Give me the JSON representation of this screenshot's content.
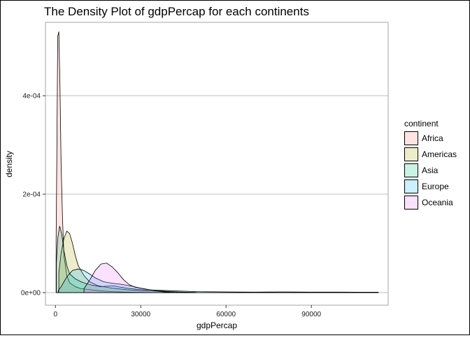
{
  "chart_data": {
    "type": "area",
    "title": "The Density Plot of gdpPercap for each continents",
    "xlabel": "gdpPercap",
    "ylabel": "density",
    "xlim": [
      -3500,
      117000
    ],
    "ylim": [
      -2.55e-05,
      0.000549
    ],
    "x_ticks": [
      0,
      30000,
      60000,
      90000
    ],
    "x_tick_labels": [
      "0",
      "30000",
      "60000",
      "90000"
    ],
    "y_ticks": [
      0,
      0.0002,
      0.0004
    ],
    "y_tick_labels": [
      "0e+00",
      "2e-04",
      "4e-04"
    ],
    "grid": true,
    "legend": {
      "title": "continent",
      "position": "right"
    },
    "series": [
      {
        "name": "Africa",
        "fill": "#F8766D",
        "points": [
          [
            241,
            0.000105
          ],
          [
            500,
            0.00028
          ],
          [
            800,
            0.00052
          ],
          [
            1200,
            0.00053
          ],
          [
            1600,
            0.00042
          ],
          [
            2000,
            0.00026
          ],
          [
            2500,
            0.00015
          ],
          [
            3000,
            7.5e-05
          ],
          [
            4000,
            3.5e-05
          ],
          [
            5000,
            2e-05
          ],
          [
            7000,
            1.2e-05
          ],
          [
            9000,
            8e-06
          ],
          [
            12000,
            6e-06
          ],
          [
            15000,
            4e-06
          ],
          [
            20000,
            2e-06
          ],
          [
            25000,
            1e-06
          ],
          [
            30000,
            5e-07
          ],
          [
            35000,
            2e-07
          ],
          [
            40000,
            1e-07
          ],
          [
            50000,
            1e-07
          ],
          [
            60000,
            1e-07
          ],
          [
            70000,
            1e-07
          ],
          [
            80000,
            1e-07
          ],
          [
            90000,
            1e-07
          ],
          [
            100000,
            1e-07
          ],
          [
            113523,
            1e-07
          ]
        ]
      },
      {
        "name": "Americas",
        "fill": "#A3A500",
        "points": [
          [
            1202,
            4e-05
          ],
          [
            2000,
            8e-05
          ],
          [
            3000,
            0.00011
          ],
          [
            4000,
            0.000125
          ],
          [
            5000,
            0.00012
          ],
          [
            6000,
            0.0001
          ],
          [
            7000,
            7.5e-05
          ],
          [
            8000,
            5.5e-05
          ],
          [
            10000,
            3.5e-05
          ],
          [
            12000,
            2.2e-05
          ],
          [
            15000,
            1.4e-05
          ],
          [
            20000,
            9e-06
          ],
          [
            25000,
            6e-06
          ],
          [
            30000,
            4e-06
          ],
          [
            35000,
            3e-06
          ],
          [
            40000,
            2e-06
          ],
          [
            42952,
            1.5e-06
          ]
        ]
      },
      {
        "name": "Asia",
        "fill": "#00BF7D",
        "points": [
          [
            331,
            6e-05
          ],
          [
            800,
            0.00011
          ],
          [
            1500,
            0.000135
          ],
          [
            2200,
            0.00012
          ],
          [
            3000,
            8.5e-05
          ],
          [
            4000,
            5.5e-05
          ],
          [
            5000,
            3.8e-05
          ],
          [
            7000,
            2.8e-05
          ],
          [
            9000,
            2.2e-05
          ],
          [
            11000,
            1.8e-05
          ],
          [
            13000,
            1.5e-05
          ],
          [
            16000,
            1.2e-05
          ],
          [
            20000,
            1.4e-05
          ],
          [
            25000,
            9e-06
          ],
          [
            30000,
            6e-06
          ],
          [
            35000,
            5e-06
          ],
          [
            40000,
            4e-06
          ],
          [
            50000,
            2e-06
          ],
          [
            60000,
            1.5e-06
          ],
          [
            70000,
            1e-06
          ],
          [
            80000,
            1.5e-06
          ],
          [
            90000,
            1e-06
          ],
          [
            100000,
            1e-06
          ],
          [
            113523,
            8e-07
          ]
        ]
      },
      {
        "name": "Europe",
        "fill": "#00B0F6",
        "points": [
          [
            974,
            4e-06
          ],
          [
            2000,
            1.2e-05
          ],
          [
            4000,
            3.2e-05
          ],
          [
            6000,
            4.5e-05
          ],
          [
            8000,
            4.8e-05
          ],
          [
            10000,
            4.5e-05
          ],
          [
            12000,
            3.8e-05
          ],
          [
            14000,
            3e-05
          ],
          [
            17000,
            2.2e-05
          ],
          [
            20000,
            1.9e-05
          ],
          [
            23000,
            1.7e-05
          ],
          [
            27000,
            1.3e-05
          ],
          [
            30000,
            9e-06
          ],
          [
            33000,
            6e-06
          ],
          [
            36000,
            4e-06
          ],
          [
            40000,
            2e-06
          ],
          [
            45000,
            1e-06
          ],
          [
            49357,
            5e-07
          ]
        ]
      },
      {
        "name": "Oceania",
        "fill": "#E76BF3",
        "points": [
          [
            10040,
            8e-06
          ],
          [
            12000,
            2.5e-05
          ],
          [
            14000,
            4.5e-05
          ],
          [
            16000,
            5.8e-05
          ],
          [
            18000,
            6e-05
          ],
          [
            20000,
            5.2e-05
          ],
          [
            22000,
            4e-05
          ],
          [
            24000,
            2.6e-05
          ],
          [
            26000,
            1.6e-05
          ],
          [
            28000,
            1.1e-05
          ],
          [
            30000,
            9e-06
          ],
          [
            32000,
            7e-06
          ],
          [
            34000,
            5e-06
          ],
          [
            36000,
            3e-06
          ],
          [
            38000,
            1.5e-06
          ],
          [
            40000,
            8e-07
          ],
          [
            42000,
            3e-07
          ],
          [
            43000,
            1e-07
          ],
          [
            44000,
            0
          ]
        ]
      }
    ]
  }
}
